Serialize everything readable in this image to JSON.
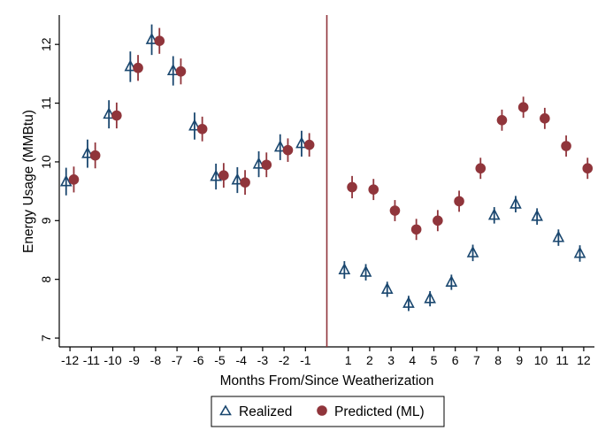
{
  "chart_data": {
    "type": "scatter",
    "xlabel": "Months From/Since Weatherization",
    "ylabel": "Energy Usage (MMBtu)",
    "xlim": [
      -12.5,
      12.5
    ],
    "ylim": [
      6.85,
      12.5
    ],
    "x_ticks": [
      -12,
      -11,
      -10,
      -9,
      -8,
      -7,
      -6,
      -5,
      -4,
      -3,
      -2,
      -1,
      1,
      2,
      3,
      4,
      5,
      6,
      7,
      8,
      9,
      10,
      11,
      12
    ],
    "x_tick_labels": [
      "-12",
      "-11",
      "-10",
      "-9",
      "-8",
      "-7",
      "-6",
      "-5",
      "-4",
      "-3",
      "-2",
      "-1",
      "1",
      "2",
      "3",
      "4",
      "5",
      "6",
      "7",
      "8",
      "9",
      "10",
      "11",
      "12"
    ],
    "y_ticks": [
      7,
      8,
      9,
      10,
      11,
      12
    ],
    "y_tick_labels": [
      "7",
      "8",
      "9",
      "10",
      "11",
      "12"
    ],
    "vertical_line_at": 0,
    "colors": {
      "realized": "#1a476f",
      "predicted": "#90353b",
      "vline": "#90353b",
      "axis": "#000000"
    },
    "legend_position": "bottom",
    "series": [
      {
        "name": "Realized",
        "marker": "hollow-triangle",
        "x_offset": -0.18,
        "points": [
          {
            "x": -12,
            "y": 9.66,
            "lo": 9.43,
            "hi": 9.9
          },
          {
            "x": -11,
            "y": 10.14,
            "lo": 9.9,
            "hi": 10.38
          },
          {
            "x": -10,
            "y": 10.81,
            "lo": 10.57,
            "hi": 11.05
          },
          {
            "x": -9,
            "y": 11.62,
            "lo": 11.36,
            "hi": 11.88
          },
          {
            "x": -8,
            "y": 12.08,
            "lo": 11.82,
            "hi": 12.34
          },
          {
            "x": -7,
            "y": 11.55,
            "lo": 11.3,
            "hi": 11.8
          },
          {
            "x": -6,
            "y": 10.61,
            "lo": 10.38,
            "hi": 10.84
          },
          {
            "x": -5,
            "y": 9.75,
            "lo": 9.53,
            "hi": 9.97
          },
          {
            "x": -4,
            "y": 9.69,
            "lo": 9.47,
            "hi": 9.91
          },
          {
            "x": -3,
            "y": 9.96,
            "lo": 9.74,
            "hi": 10.18
          },
          {
            "x": -2,
            "y": 10.25,
            "lo": 10.03,
            "hi": 10.47
          },
          {
            "x": -1,
            "y": 10.31,
            "lo": 10.09,
            "hi": 10.53
          },
          {
            "x": 1,
            "y": 8.16,
            "lo": 8.01,
            "hi": 8.31
          },
          {
            "x": 2,
            "y": 8.12,
            "lo": 7.98,
            "hi": 8.26
          },
          {
            "x": 3,
            "y": 7.83,
            "lo": 7.7,
            "hi": 7.96
          },
          {
            "x": 4,
            "y": 7.59,
            "lo": 7.46,
            "hi": 7.72
          },
          {
            "x": 5,
            "y": 7.67,
            "lo": 7.54,
            "hi": 7.8
          },
          {
            "x": 6,
            "y": 7.95,
            "lo": 7.82,
            "hi": 8.08
          },
          {
            "x": 7,
            "y": 8.45,
            "lo": 8.31,
            "hi": 8.59
          },
          {
            "x": 8,
            "y": 9.09,
            "lo": 8.95,
            "hi": 9.23
          },
          {
            "x": 9,
            "y": 9.28,
            "lo": 9.14,
            "hi": 9.42
          },
          {
            "x": 10,
            "y": 9.07,
            "lo": 8.93,
            "hi": 9.21
          },
          {
            "x": 11,
            "y": 8.71,
            "lo": 8.57,
            "hi": 8.85
          },
          {
            "x": 12,
            "y": 8.44,
            "lo": 8.3,
            "hi": 8.58
          }
        ]
      },
      {
        "name": "Predicted (ML)",
        "marker": "filled-circle",
        "x_offset": 0.18,
        "points": [
          {
            "x": -12,
            "y": 9.7,
            "lo": 9.48,
            "hi": 9.92
          },
          {
            "x": -11,
            "y": 10.11,
            "lo": 9.89,
            "hi": 10.33
          },
          {
            "x": -10,
            "y": 10.79,
            "lo": 10.57,
            "hi": 11.01
          },
          {
            "x": -9,
            "y": 11.6,
            "lo": 11.38,
            "hi": 11.82
          },
          {
            "x": -8,
            "y": 12.06,
            "lo": 11.84,
            "hi": 12.28
          },
          {
            "x": -7,
            "y": 11.54,
            "lo": 11.32,
            "hi": 11.76
          },
          {
            "x": -6,
            "y": 10.56,
            "lo": 10.35,
            "hi": 10.77
          },
          {
            "x": -5,
            "y": 9.77,
            "lo": 9.56,
            "hi": 9.98
          },
          {
            "x": -4,
            "y": 9.65,
            "lo": 9.44,
            "hi": 9.86
          },
          {
            "x": -3,
            "y": 9.95,
            "lo": 9.74,
            "hi": 10.16
          },
          {
            "x": -2,
            "y": 10.2,
            "lo": 10.0,
            "hi": 10.4
          },
          {
            "x": -1,
            "y": 10.29,
            "lo": 10.09,
            "hi": 10.49
          },
          {
            "x": 1,
            "y": 9.57,
            "lo": 9.38,
            "hi": 9.76
          },
          {
            "x": 2,
            "y": 9.53,
            "lo": 9.35,
            "hi": 9.71
          },
          {
            "x": 3,
            "y": 9.17,
            "lo": 8.99,
            "hi": 9.35
          },
          {
            "x": 4,
            "y": 8.85,
            "lo": 8.67,
            "hi": 9.03
          },
          {
            "x": 5,
            "y": 9.0,
            "lo": 8.82,
            "hi": 9.18
          },
          {
            "x": 6,
            "y": 9.33,
            "lo": 9.15,
            "hi": 9.51
          },
          {
            "x": 7,
            "y": 9.89,
            "lo": 9.71,
            "hi": 10.07
          },
          {
            "x": 8,
            "y": 10.71,
            "lo": 10.53,
            "hi": 10.89
          },
          {
            "x": 9,
            "y": 10.93,
            "lo": 10.75,
            "hi": 11.11
          },
          {
            "x": 10,
            "y": 10.74,
            "lo": 10.56,
            "hi": 10.92
          },
          {
            "x": 11,
            "y": 10.27,
            "lo": 10.09,
            "hi": 10.45
          },
          {
            "x": 12,
            "y": 9.89,
            "lo": 9.71,
            "hi": 10.07
          }
        ]
      }
    ]
  },
  "legend": {
    "realized_label": "Realized",
    "predicted_label": "Predicted (ML)"
  }
}
